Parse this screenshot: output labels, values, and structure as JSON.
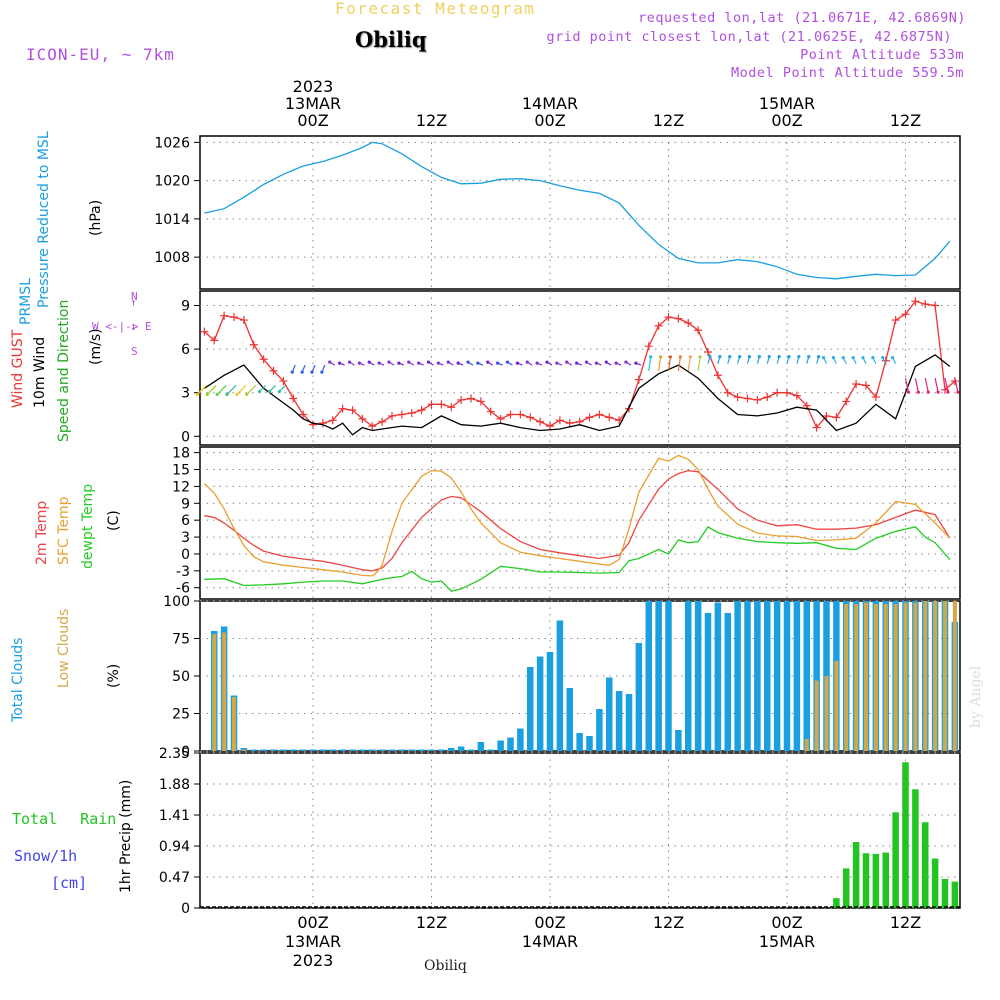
{
  "header": {
    "title": "Forecast Meteogram",
    "station": "Obiliq",
    "model": "ICON-EU, ~ 7km",
    "requested": "requested lon,lat (21.0671E, 42.6869N)",
    "grid_point": "grid point closest lon,lat (21.0625E, 42.6875N)",
    "point_alt": "Point Altitude 533m",
    "model_alt": "Model Point Altitude 559.5m"
  },
  "footer": {
    "station": "Obiliq",
    "credit": "by Angel"
  },
  "colors": {
    "pressure": "#1a9fe0",
    "gust": "#ee3333",
    "wind": "#000000",
    "dir": "#22aa22",
    "temp": "#ee4444",
    "sfc": "#e8a030",
    "dew": "#22cc22",
    "total_clouds": "#1a9fe0",
    "low_clouds": "#d4a848",
    "precip": "#22c422",
    "snow": "#4444ee",
    "purple": "#b050e0"
  },
  "time_axis": {
    "year": "2023",
    "ticks": [
      {
        "x": 0,
        "label": "00Z",
        "date": "13MAR",
        "year": "2023"
      },
      {
        "x": 12,
        "label": "12Z",
        "date": "",
        "year": ""
      },
      {
        "x": 24,
        "label": "00Z",
        "date": "14MAR",
        "year": ""
      },
      {
        "x": 36,
        "label": "12Z",
        "date": "",
        "year": ""
      },
      {
        "x": 48,
        "label": "00Z",
        "date": "15MAR",
        "year": ""
      },
      {
        "x": 60,
        "label": "12Z",
        "date": "",
        "year": ""
      }
    ]
  },
  "chart_data": [
    {
      "type": "line",
      "id": "pressure",
      "label_lines": [
        "PRMSL",
        "Pressure Reduced to MSL"
      ],
      "units": "(hPa)",
      "ylim": [
        1003,
        1027
      ],
      "yticks": [
        1008,
        1014,
        1020,
        1026
      ],
      "series": [
        {
          "name": "PRMSL",
          "x": [
            -11,
            -9,
            -7,
            -5,
            -3,
            -1,
            1,
            3,
            5,
            6,
            7,
            9,
            11,
            13,
            15,
            17,
            19,
            21,
            23,
            25,
            27,
            29,
            31,
            33,
            35,
            37,
            39,
            41,
            43,
            45,
            47,
            49,
            51,
            53,
            55,
            57,
            59,
            61,
            63,
            64.5
          ],
          "values": [
            1014.9,
            1015.6,
            1017.4,
            1019.4,
            1021.0,
            1022.3,
            1023.0,
            1024.0,
            1025.2,
            1026.0,
            1025.8,
            1024.2,
            1022.2,
            1020.5,
            1019.5,
            1019.6,
            1020.2,
            1020.3,
            1020.0,
            1019.2,
            1018.5,
            1018.0,
            1016.5,
            1013.0,
            1010.0,
            1007.8,
            1007.1,
            1007.1,
            1007.6,
            1007.3,
            1006.5,
            1005.3,
            1004.8,
            1004.6,
            1005.0,
            1005.3,
            1005.1,
            1005.2,
            1007.8,
            1010.5
          ]
        }
      ]
    },
    {
      "type": "line",
      "id": "wind",
      "label_lines": [
        "Wind GUST",
        "10m Wind",
        "Speed and Direction"
      ],
      "units": "(m/s)",
      "compass": [
        "N",
        "W <-|-> E",
        "S"
      ],
      "ylim": [
        -0.6,
        10
      ],
      "yticks": [
        0,
        3,
        6,
        9
      ],
      "series": [
        {
          "name": "Wind GUST",
          "x": [
            -11,
            -10,
            -9,
            -8,
            -7,
            -6,
            -5,
            -4,
            -3,
            -2,
            -1,
            0,
            1,
            2,
            3,
            4,
            5,
            6,
            7,
            8,
            9,
            10,
            11,
            12,
            13,
            14,
            15,
            16,
            17,
            18,
            19,
            20,
            21,
            22,
            23,
            24,
            25,
            26,
            27,
            28,
            29,
            30,
            31,
            32,
            33,
            34,
            35,
            36,
            37,
            38,
            39,
            40,
            41,
            42,
            43,
            44,
            45,
            46,
            47,
            48,
            49,
            50,
            51,
            52,
            53,
            54,
            55,
            56,
            57,
            58,
            59,
            60,
            61,
            62,
            63,
            64,
            65
          ],
          "values": [
            7.2,
            6.6,
            8.3,
            8.2,
            8.0,
            6.3,
            5.3,
            4.5,
            3.8,
            2.6,
            1.5,
            0.8,
            0.9,
            1.1,
            1.9,
            1.8,
            1.2,
            0.7,
            1.0,
            1.4,
            1.5,
            1.6,
            1.8,
            2.2,
            2.2,
            2.0,
            2.5,
            2.6,
            2.4,
            1.7,
            1.2,
            1.5,
            1.5,
            1.3,
            1.0,
            0.7,
            1.1,
            0.9,
            1.0,
            1.3,
            1.5,
            1.3,
            1.1,
            1.9,
            3.9,
            6.2,
            7.6,
            8.2,
            8.1,
            7.8,
            7.3,
            5.8,
            4.2,
            3.0,
            2.7,
            2.6,
            2.5,
            2.7,
            3.0,
            3.0,
            2.8,
            2.1,
            0.6,
            1.4,
            1.3,
            2.4,
            3.6,
            3.5,
            2.7,
            5.2,
            8.0,
            8.4,
            9.3,
            9.1,
            9.0,
            3.2,
            3.8
          ]
        },
        {
          "name": "10m Wind",
          "x": [
            -11,
            -9,
            -7,
            -5,
            -4,
            -3,
            -2,
            -1,
            0,
            1,
            2,
            3,
            4,
            5,
            6,
            7,
            9,
            11,
            13,
            15,
            17,
            19,
            21,
            23,
            25,
            27,
            29,
            31,
            33,
            35,
            37,
            39,
            41,
            43,
            45,
            47,
            49,
            51,
            53,
            55,
            57,
            59,
            61,
            63,
            64.5
          ],
          "values": [
            3.3,
            4.2,
            4.9,
            3.3,
            2.8,
            2.3,
            1.8,
            1.2,
            0.9,
            0.8,
            0.5,
            0.9,
            0.1,
            0.6,
            0.4,
            0.5,
            0.7,
            0.6,
            1.4,
            0.8,
            0.7,
            0.9,
            0.6,
            0.4,
            0.5,
            0.8,
            0.4,
            0.7,
            3.3,
            4.3,
            4.9,
            4.0,
            2.6,
            1.5,
            1.4,
            1.6,
            2.0,
            1.8,
            0.4,
            0.9,
            2.2,
            1.2,
            4.8,
            5.6,
            4.8
          ]
        }
      ]
    },
    {
      "type": "line",
      "id": "temperature",
      "label_lines": [
        "2m Temp",
        "SFC Temp",
        "dewpt Temp"
      ],
      "units": "(C)",
      "ylim": [
        -8,
        19
      ],
      "yticks": [
        -6,
        -3,
        0,
        3,
        6,
        9,
        12,
        15,
        18
      ],
      "series": [
        {
          "name": "2m Temp",
          "x": [
            -11,
            -10,
            -9,
            -8,
            -7,
            -6,
            -5,
            -3,
            -1,
            1,
            3,
            5,
            6,
            7,
            8,
            9,
            11,
            13,
            14,
            15,
            17,
            19,
            21,
            23,
            25,
            27,
            29,
            31,
            32,
            33,
            35,
            36,
            37,
            38,
            39,
            41,
            43,
            45,
            47,
            49,
            51,
            53,
            55,
            57,
            59,
            61,
            63,
            64.5
          ],
          "values": [
            6.8,
            6.5,
            5.5,
            4.2,
            2.8,
            1.5,
            0.5,
            -0.4,
            -0.9,
            -1.3,
            -2.0,
            -2.8,
            -3.0,
            -2.5,
            -0.8,
            2.0,
            6.5,
            9.6,
            10.2,
            10.0,
            7.5,
            4.5,
            2.2,
            0.8,
            0.2,
            -0.3,
            -0.8,
            -0.2,
            2.0,
            6.0,
            11.5,
            13.3,
            14.3,
            14.8,
            14.6,
            11.5,
            8.0,
            6.0,
            5.0,
            5.2,
            4.4,
            4.4,
            4.6,
            5.2,
            6.5,
            7.8,
            7.0,
            2.8
          ]
        },
        {
          "name": "SFC Temp",
          "x": [
            -11,
            -10,
            -9,
            -8,
            -7,
            -6,
            -5,
            -3,
            -1,
            1,
            3,
            5,
            6,
            6.5,
            7,
            8,
            9,
            11,
            12,
            13,
            14,
            15,
            16,
            17,
            19,
            21,
            23,
            25,
            27,
            29,
            30,
            31,
            32,
            33,
            35,
            36,
            37,
            38,
            39,
            40,
            41,
            43,
            45,
            47,
            49,
            51,
            53,
            55,
            57,
            59,
            61,
            63,
            64.5
          ],
          "values": [
            12.5,
            10.8,
            8.0,
            4.5,
            1.5,
            -0.5,
            -1.4,
            -2.0,
            -2.4,
            -2.8,
            -3.2,
            -3.8,
            -3.9,
            -3.2,
            -2.0,
            4.0,
            9.0,
            13.8,
            14.8,
            14.7,
            13.5,
            11.0,
            8.0,
            5.5,
            2.0,
            0.3,
            -0.3,
            -0.8,
            -1.3,
            -1.8,
            -2.0,
            -1.0,
            4.5,
            11.0,
            17.0,
            16.5,
            17.5,
            16.8,
            15.0,
            11.5,
            8.5,
            5.3,
            3.7,
            3.2,
            3.1,
            2.4,
            2.5,
            2.8,
            5.5,
            9.3,
            8.8,
            5.5,
            2.8
          ]
        },
        {
          "name": "dewpt Temp",
          "x": [
            -11,
            -9,
            -7,
            -5,
            -3,
            -1,
            1,
            3,
            5,
            7,
            8,
            9,
            10,
            11,
            12,
            13,
            14,
            15,
            17,
            19,
            21,
            23,
            25,
            27,
            29,
            31,
            32,
            33,
            35,
            36,
            37,
            38,
            39,
            40,
            41,
            43,
            45,
            47,
            49,
            51,
            53,
            55,
            57,
            59,
            61,
            62,
            63,
            64.5
          ],
          "values": [
            -4.5,
            -4.4,
            -5.6,
            -5.5,
            -5.3,
            -5.0,
            -4.8,
            -4.8,
            -5.3,
            -4.5,
            -4.2,
            -4.0,
            -3.1,
            -4.4,
            -5.0,
            -4.8,
            -6.6,
            -6.2,
            -4.5,
            -2.2,
            -2.6,
            -3.2,
            -3.2,
            -3.3,
            -3.4,
            -3.3,
            -1.2,
            -0.8,
            0.8,
            0.0,
            2.5,
            2.0,
            2.2,
            4.8,
            3.8,
            2.8,
            2.2,
            2.0,
            1.9,
            2.0,
            1.0,
            0.8,
            2.8,
            4.0,
            4.8,
            3.0,
            2.0,
            -1.0
          ]
        }
      ]
    },
    {
      "type": "bar",
      "id": "clouds",
      "label_lines": [
        "Total Clouds",
        "Low Clouds"
      ],
      "units": "(%)",
      "ylim": [
        0,
        100
      ],
      "yticks": [
        0,
        25,
        50,
        75,
        100
      ],
      "series": [
        {
          "name": "Total Clouds",
          "x": [
            -10,
            -9,
            -8,
            -7,
            -6,
            -5,
            -4,
            -3,
            -2,
            -1,
            0,
            1,
            2,
            3,
            4,
            5,
            6,
            7,
            8,
            9,
            10,
            11,
            12,
            13,
            14,
            15,
            16,
            17,
            18,
            19,
            20,
            21,
            22,
            23,
            24,
            25,
            26,
            27,
            28,
            29,
            30,
            31,
            32,
            33,
            34,
            35,
            36,
            37,
            38,
            39,
            40,
            41,
            42,
            43,
            44,
            45,
            46,
            47,
            48,
            49,
            50,
            51,
            52,
            53,
            54,
            55,
            56,
            57,
            58,
            59,
            60,
            61,
            62,
            63,
            64,
            65
          ],
          "values": [
            80,
            83,
            37,
            2,
            1,
            1,
            1,
            1,
            1,
            1,
            1,
            1,
            1,
            1,
            1,
            1,
            1,
            1,
            1,
            1,
            1,
            1,
            1,
            1,
            2,
            3,
            1,
            6,
            1,
            7,
            9,
            15,
            56,
            63,
            66,
            87,
            42,
            12,
            10,
            28,
            49,
            40,
            38,
            72,
            100,
            100,
            100,
            14,
            100,
            100,
            92,
            99,
            92,
            100,
            100,
            100,
            100,
            100,
            100,
            100,
            100,
            100,
            100,
            100,
            100,
            100,
            100,
            100,
            100,
            100,
            100,
            100,
            100,
            100,
            100,
            86
          ]
        },
        {
          "name": "Low Clouds",
          "x": [
            -10,
            -9,
            -8,
            -7,
            50,
            51,
            52,
            53,
            54,
            55,
            56,
            57,
            58,
            59,
            60,
            61,
            62,
            63,
            64,
            65
          ],
          "values": [
            78,
            79,
            36,
            1,
            8,
            47,
            50,
            60,
            98,
            98,
            99,
            98,
            98,
            98,
            99,
            99,
            100,
            100,
            100,
            100
          ]
        }
      ]
    },
    {
      "type": "bar",
      "id": "precip",
      "label_lines": [
        "Total Rain",
        "Snow/1h",
        "[cm]"
      ],
      "units": "1hr Precip (mm)",
      "ylim": [
        0,
        2.35
      ],
      "yticks": [
        0,
        0.47,
        0.94,
        1.41,
        1.88,
        2.35
      ],
      "series": [
        {
          "name": "Total Rain",
          "x": [
            53,
            54,
            55,
            56,
            57,
            58,
            59,
            60,
            61,
            62,
            63,
            64,
            65
          ],
          "values": [
            0.15,
            0.6,
            1.0,
            0.83,
            0.82,
            0.84,
            1.45,
            2.21,
            1.8,
            1.3,
            0.75,
            0.44,
            0.4
          ]
        }
      ]
    }
  ]
}
